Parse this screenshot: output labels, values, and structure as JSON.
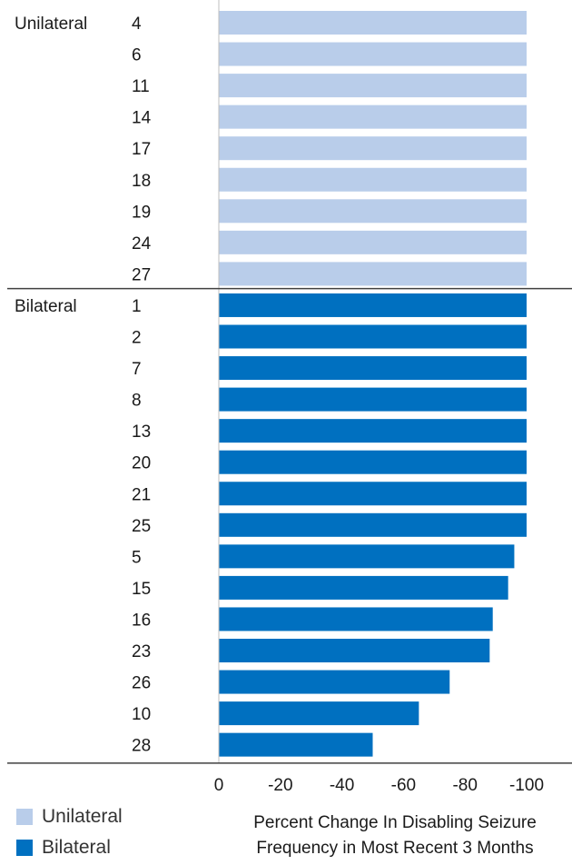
{
  "chart_data": {
    "type": "bar",
    "orientation": "horizontal",
    "xlim": [
      0,
      -100
    ],
    "xticks": [
      "0",
      "-20",
      "-40",
      "-60",
      "-80",
      "-100"
    ],
    "xlabel": [
      "Percent Change In Disabling Seizure",
      "Frequency in Most Recent 3 Months"
    ],
    "groups": [
      {
        "name": "Unilateral",
        "color": "#b9cdea",
        "categories": [
          "4",
          "6",
          "11",
          "14",
          "17",
          "18",
          "19",
          "24",
          "27"
        ],
        "values": [
          -100,
          -100,
          -100,
          -100,
          -100,
          -100,
          -100,
          -100,
          -100
        ]
      },
      {
        "name": "Bilateral",
        "color": "#0070c0",
        "categories": [
          "1",
          "2",
          "7",
          "8",
          "13",
          "20",
          "21",
          "25",
          "5",
          "15",
          "16",
          "23",
          "26",
          "10",
          "28"
        ],
        "values": [
          -100,
          -100,
          -100,
          -100,
          -100,
          -100,
          -100,
          -100,
          -96,
          -94,
          -89,
          -88,
          -75,
          -65,
          -50
        ]
      }
    ],
    "legend": [
      {
        "label": "Unilateral",
        "color": "#b9cdea"
      },
      {
        "label": "Bilateral",
        "color": "#0070c0"
      }
    ],
    "legend_position": "bottom-left"
  }
}
